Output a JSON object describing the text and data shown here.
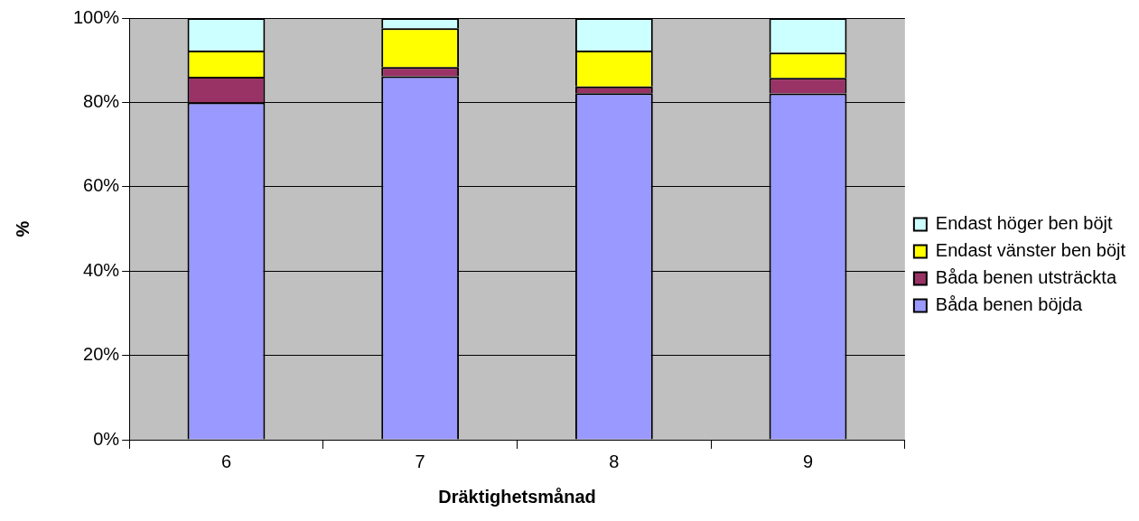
{
  "chart_data": {
    "type": "bar",
    "stacked": true,
    "xlabel": "Dräktighetsmånad",
    "ylabel": "%",
    "categories": [
      "6",
      "7",
      "8",
      "9"
    ],
    "series": [
      {
        "name": "Båda benen böjda",
        "color": "#9999ff",
        "values": [
          80,
          86.2,
          82.2,
          82.1
        ]
      },
      {
        "name": "Båda benen utsträckta",
        "color": "#993366",
        "values": [
          6.1,
          2.2,
          1.6,
          3.7
        ]
      },
      {
        "name": "Endast vänster ben böjt",
        "color": "#ffff00",
        "values": [
          6.2,
          9.2,
          8.5,
          6.0
        ]
      },
      {
        "name": "Endast höger ben böjt",
        "color": "#ccffff",
        "values": [
          7.7,
          2.4,
          7.7,
          8.2
        ]
      }
    ],
    "ylim": [
      0,
      100
    ],
    "yticks": [
      {
        "value": 0,
        "label": "0%"
      },
      {
        "value": 20,
        "label": "20%"
      },
      {
        "value": 40,
        "label": "40%"
      },
      {
        "value": 60,
        "label": "60%"
      },
      {
        "value": 80,
        "label": "80%"
      },
      {
        "value": 100,
        "label": "100%"
      }
    ],
    "grid": "y",
    "legend": "right"
  }
}
